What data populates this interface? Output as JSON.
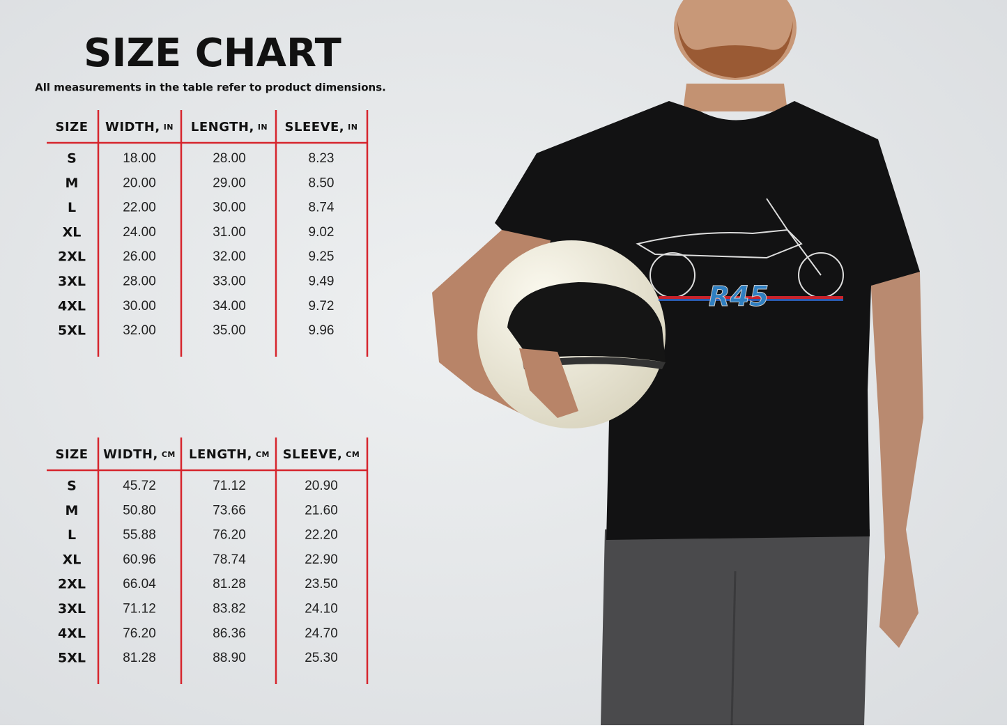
{
  "header": {
    "title": "SIZE CHART",
    "subtitle": "All measurements in the table refer to product dimensions."
  },
  "tables": [
    {
      "columns": [
        {
          "label": "SIZE"
        },
        {
          "label": "WIDTH,",
          "unit": "IN"
        },
        {
          "label": "LENGTH,",
          "unit": "IN"
        },
        {
          "label": "SLEEVE,",
          "unit": "IN"
        }
      ],
      "rows": [
        [
          "S",
          "18.00",
          "28.00",
          "8.23"
        ],
        [
          "M",
          "20.00",
          "29.00",
          "8.50"
        ],
        [
          "L",
          "22.00",
          "30.00",
          "8.74"
        ],
        [
          "XL",
          "24.00",
          "31.00",
          "9.02"
        ],
        [
          "2XL",
          "26.00",
          "32.00",
          "9.25"
        ],
        [
          "3XL",
          "28.00",
          "33.00",
          "9.49"
        ],
        [
          "4XL",
          "30.00",
          "34.00",
          "9.72"
        ],
        [
          "5XL",
          "32.00",
          "35.00",
          "9.96"
        ]
      ]
    },
    {
      "columns": [
        {
          "label": "SIZE"
        },
        {
          "label": "WIDTH,",
          "unit": "CM"
        },
        {
          "label": "LENGTH,",
          "unit": "CM"
        },
        {
          "label": "SLEEVE,",
          "unit": "CM"
        }
      ],
      "rows": [
        [
          "S",
          "45.72",
          "71.12",
          "20.90"
        ],
        [
          "M",
          "50.80",
          "73.66",
          "21.60"
        ],
        [
          "L",
          "55.88",
          "76.20",
          "22.20"
        ],
        [
          "XL",
          "60.96",
          "78.74",
          "22.90"
        ],
        [
          "2XL",
          "66.04",
          "81.28",
          "23.50"
        ],
        [
          "3XL",
          "71.12",
          "83.82",
          "24.10"
        ],
        [
          "4XL",
          "76.20",
          "86.36",
          "24.70"
        ],
        [
          "5XL",
          "81.28",
          "88.90",
          "25.30"
        ]
      ]
    }
  ],
  "shirt_graphic": {
    "text": "R45"
  }
}
